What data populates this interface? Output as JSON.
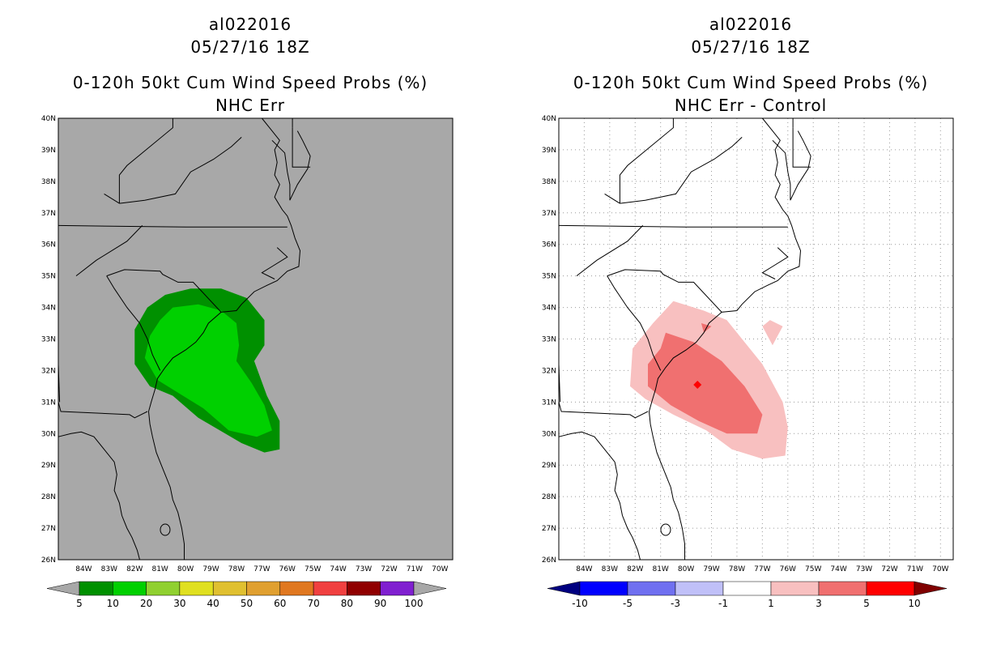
{
  "panels": [
    {
      "id": "left",
      "storm_id": "al022016",
      "datetime": "05/27/16 18Z",
      "product": "0-120h 50kt Cum Wind Speed Probs (%)",
      "subtitle": "NHC Err",
      "background": "#a8a8a8",
      "colorbar": {
        "labels": [
          "5",
          "10",
          "20",
          "30",
          "40",
          "50",
          "60",
          "70",
          "80",
          "90",
          "100"
        ],
        "colors": [
          "#009000",
          "#00d000",
          "#90d030",
          "#e0e020",
          "#e0c030",
          "#e0a030",
          "#e07820",
          "#f04040",
          "#900000",
          "#8020d0"
        ],
        "left_arrow_color": "#a8a8a8",
        "right_arrow_color": "#a8a8a8"
      }
    },
    {
      "id": "right",
      "storm_id": "al022016",
      "datetime": "05/27/16 18Z",
      "product": "0-120h 50kt Cum Wind Speed Probs (%)",
      "subtitle": "NHC Err - Control",
      "background": "#ffffff",
      "colorbar": {
        "labels": [
          "-10",
          "-5",
          "-3",
          "-1",
          "1",
          "3",
          "5",
          "10"
        ],
        "colors": [
          "#0000ff",
          "#7070f0",
          "#c0c0f8",
          "#ffffff",
          "#f8c0c0",
          "#f07070",
          "#ff0000"
        ],
        "left_arrow_color": "#000080",
        "right_arrow_color": "#800000"
      }
    }
  ],
  "axes": {
    "lat_labels": [
      "40N",
      "39N",
      "38N",
      "37N",
      "36N",
      "35N",
      "34N",
      "33N",
      "32N",
      "31N",
      "30N",
      "29N",
      "28N",
      "27N",
      "26N"
    ],
    "lon_labels": [
      "84W",
      "83W",
      "82W",
      "81W",
      "80W",
      "79W",
      "78W",
      "77W",
      "76W",
      "75W",
      "74W",
      "73W",
      "72W",
      "71W",
      "70W"
    ]
  },
  "map_features": {
    "left_outer_prob_color": "#009000",
    "left_inner_prob_color": "#00d000",
    "right_light_color": "#f8c0c0",
    "right_mid_color": "#f07070",
    "right_max_color": "#ff0000"
  }
}
